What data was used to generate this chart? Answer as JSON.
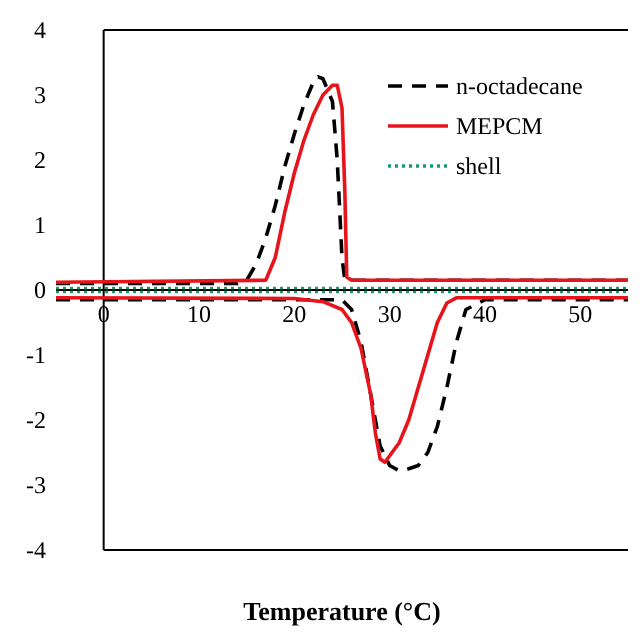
{
  "chart_data": {
    "type": "line",
    "xlabel": "Temperature (°C)",
    "xlim": [
      -5,
      55
    ],
    "xticks": [
      0,
      10,
      20,
      30,
      40,
      50
    ],
    "ylim": [
      -4,
      4
    ],
    "yticks": [
      -4,
      -3,
      -2,
      -1,
      0,
      1,
      2,
      3,
      4
    ],
    "grid": false,
    "legend": "top right",
    "marker": "none",
    "series": [
      {
        "name": "n-octadecane",
        "color": "#000000",
        "line_style": "dashed",
        "x": [
          -5,
          14,
          15,
          16,
          17,
          18,
          19,
          20,
          21,
          22,
          22.5,
          23,
          24,
          24.5,
          25,
          25.3,
          55
        ],
        "values": [
          0.1,
          0.1,
          0.15,
          0.4,
          0.8,
          1.3,
          1.9,
          2.4,
          2.85,
          3.2,
          3.28,
          3.25,
          2.9,
          2,
          0.5,
          0.15,
          0.15
        ]
      },
      {
        "name": "MEPCM",
        "color": "#e8141c",
        "line_style": "solid",
        "x": [
          -5,
          17,
          18,
          19,
          20,
          21,
          22,
          23,
          24,
          24.5,
          25,
          25.3,
          25.5,
          26,
          55
        ],
        "values": [
          0.12,
          0.15,
          0.5,
          1.2,
          1.8,
          2.3,
          2.7,
          3,
          3.15,
          3.15,
          2.8,
          1.5,
          0.2,
          0.15,
          0.15
        ]
      },
      {
        "name": "shell",
        "color": "#1a9a6a",
        "line_style": "dotted",
        "x": [
          -5,
          55
        ],
        "values": [
          0.03,
          0.03
        ]
      },
      {
        "color": "#000000",
        "line_style": "dashed",
        "x": [
          -5,
          25,
          26,
          27,
          28,
          29,
          30,
          31,
          32,
          33,
          34,
          35,
          36,
          37,
          38,
          40,
          55
        ],
        "values": [
          -0.15,
          -0.15,
          -0.3,
          -0.8,
          -1.6,
          -2.4,
          -2.7,
          -2.78,
          -2.75,
          -2.7,
          -2.5,
          -2.1,
          -1.5,
          -0.8,
          -0.3,
          -0.15,
          -0.15
        ]
      },
      {
        "color": "#e8141c",
        "line_style": "solid",
        "x": [
          -5,
          20,
          23,
          25,
          26,
          27,
          28,
          28.5,
          29,
          29.5,
          30,
          31,
          32,
          33,
          34,
          35,
          36,
          37,
          55
        ],
        "values": [
          -0.12,
          -0.13,
          -0.18,
          -0.3,
          -0.5,
          -0.9,
          -1.6,
          -2.2,
          -2.6,
          -2.65,
          -2.55,
          -2.35,
          -2,
          -1.5,
          -1,
          -0.5,
          -0.2,
          -0.12,
          -0.12
        ]
      },
      {
        "color": "#1a9a6a",
        "line_style": "dotted",
        "x": [
          -5,
          55
        ],
        "values": [
          -0.03,
          -0.03
        ]
      }
    ]
  }
}
